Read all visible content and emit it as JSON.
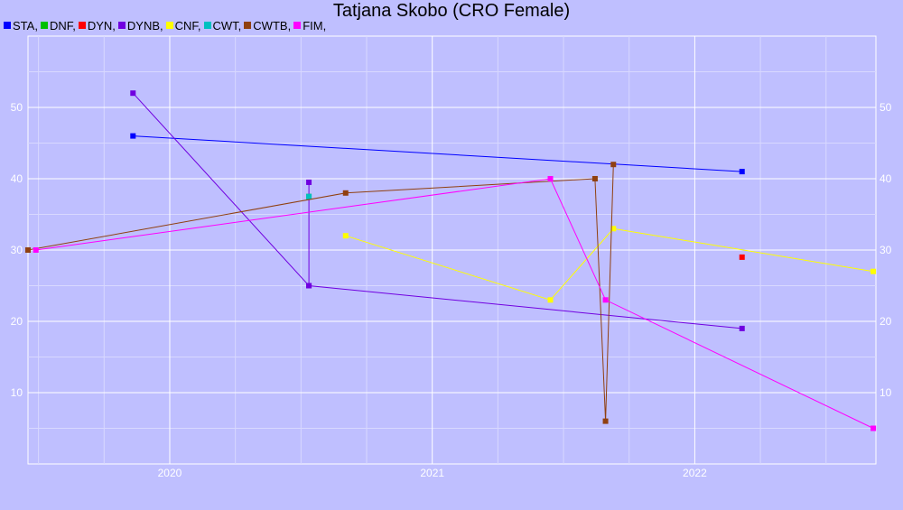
{
  "chart_data": {
    "type": "line",
    "title": "Tatjana Skobo (CRO Female)",
    "xlabel": "",
    "ylabel": "",
    "x_tick_labels": [
      "2020",
      "2021",
      "2022"
    ],
    "y_tick_labels": [
      "10",
      "20",
      "30",
      "40",
      "50"
    ],
    "xlim": [
      2019.46,
      2022.69
    ],
    "ylim": [
      0,
      60
    ],
    "grid": true,
    "legend": "top-left",
    "series": [
      {
        "name": "STA,",
        "color": "#0000ff",
        "points": [
          [
            2019.86,
            46
          ],
          [
            2022.18,
            41
          ]
        ]
      },
      {
        "name": "DNF,",
        "color": "#00c000",
        "points": [
          [
            2020.53,
            37.5
          ]
        ]
      },
      {
        "name": "DYN,",
        "color": "#ff0000",
        "points": [
          [
            2022.18,
            29
          ]
        ]
      },
      {
        "name": "DYNB,",
        "color": "#7000e0",
        "points": [
          [
            2019.86,
            52
          ],
          [
            2020.53,
            25
          ],
          [
            2020.53,
            39.5
          ],
          [
            2020.53,
            25
          ],
          [
            2022.18,
            19
          ]
        ]
      },
      {
        "name": "CNF,",
        "color": "#ffff00",
        "points": [
          [
            2020.67,
            32
          ],
          [
            2021.45,
            23
          ],
          [
            2021.69,
            33
          ],
          [
            2022.68,
            27
          ]
        ]
      },
      {
        "name": "CWT,",
        "color": "#00c0c0",
        "points": [
          [
            2020.53,
            37.5
          ]
        ]
      },
      {
        "name": "CWTB,",
        "color": "#904010",
        "points": [
          [
            2019.46,
            30
          ],
          [
            2020.67,
            38
          ],
          [
            2021.62,
            40
          ],
          [
            2021.66,
            6
          ],
          [
            2021.69,
            42
          ]
        ]
      },
      {
        "name": "FIM,",
        "color": "#ff00ff",
        "points": [
          [
            2019.49,
            30
          ],
          [
            2021.45,
            40
          ],
          [
            2021.66,
            23
          ],
          [
            2022.68,
            5
          ]
        ]
      }
    ]
  }
}
